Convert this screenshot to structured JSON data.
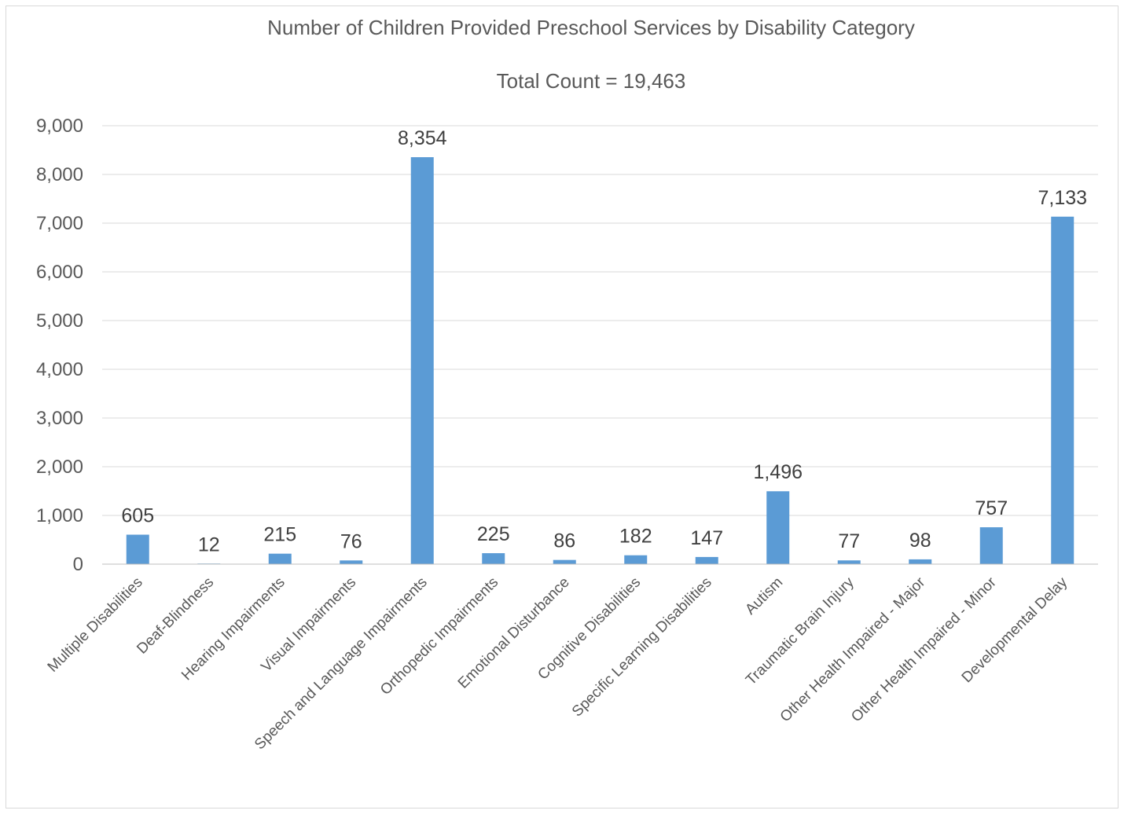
{
  "chart_data": {
    "type": "bar",
    "title": "Number of Children Provided Preschool Services by Disability Category",
    "subtitle": "Total Count =  19,463",
    "xlabel": "",
    "ylabel": "",
    "ylim": [
      0,
      9000
    ],
    "yticks": [
      0,
      1000,
      2000,
      3000,
      4000,
      5000,
      6000,
      7000,
      8000,
      9000
    ],
    "ytick_labels": [
      "0",
      "1,000",
      "2,000",
      "3,000",
      "4,000",
      "5,000",
      "6,000",
      "7,000",
      "8,000",
      "9,000"
    ],
    "grid": true,
    "legend": "none",
    "bar_color": "#5b9bd5",
    "categories": [
      "Multiple Disabilities",
      "Deaf-Blindness",
      "Hearing Impairments",
      "Visual Impairments",
      "Speech and Language Impairments",
      "Orthopedic Impairments",
      "Emotional Disturbance",
      "Cognitive Disabilities",
      "Specific Learning Disabilities",
      "Autism",
      "Traumatic Brain Injury",
      "Other Health Impaired - Major",
      "Other Health Impaired - Minor",
      "Developmental Delay"
    ],
    "values": [
      605,
      12,
      215,
      76,
      8354,
      225,
      86,
      182,
      147,
      1496,
      77,
      98,
      757,
      7133
    ],
    "value_labels": [
      "605",
      "12",
      "215",
      "76",
      "8,354",
      "225",
      "86",
      "182",
      "147",
      "1,496",
      "77",
      "98",
      "757",
      "7,133"
    ]
  }
}
